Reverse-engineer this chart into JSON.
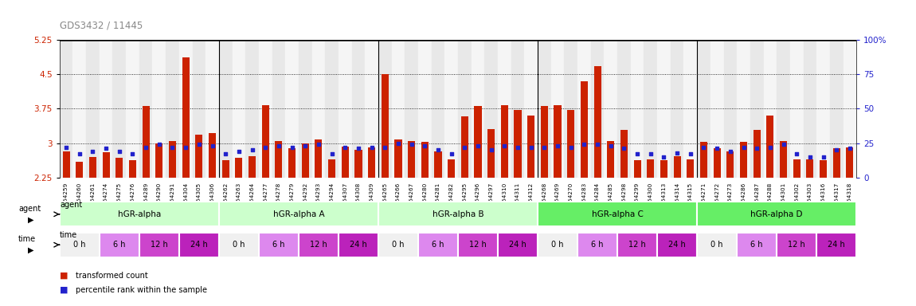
{
  "title": "GDS3432 / 11445",
  "title_color": "#888888",
  "ylim_left": [
    2.25,
    5.25
  ],
  "yticks_left": [
    2.25,
    3.0,
    3.75,
    4.5,
    5.25
  ],
  "ytick_labels_left": [
    "2.25",
    "3",
    "3.75",
    "4.5",
    "5.25"
  ],
  "yticks_right": [
    0,
    25,
    50,
    75,
    100
  ],
  "ytick_labels_right": [
    "0",
    "25",
    "50",
    "75",
    "100%"
  ],
  "bar_color": "#cc2200",
  "dot_color": "#2222cc",
  "samples": [
    "GSM154259",
    "GSM154260",
    "GSM154261",
    "GSM154274",
    "GSM154275",
    "GSM154276",
    "GSM154289",
    "GSM154290",
    "GSM154291",
    "GSM154304",
    "GSM154305",
    "GSM154306",
    "GSM154262",
    "GSM154263",
    "GSM154264",
    "GSM154277",
    "GSM154278",
    "GSM154279",
    "GSM154292",
    "GSM154293",
    "GSM154294",
    "GSM154307",
    "GSM154308",
    "GSM154309",
    "GSM154265",
    "GSM154266",
    "GSM154267",
    "GSM154280",
    "GSM154281",
    "GSM154282",
    "GSM154295",
    "GSM154296",
    "GSM154297",
    "GSM154310",
    "GSM154311",
    "GSM154312",
    "GSM154268",
    "GSM154269",
    "GSM154270",
    "GSM154283",
    "GSM154284",
    "GSM154285",
    "GSM154298",
    "GSM154299",
    "GSM154300",
    "GSM154313",
    "GSM154314",
    "GSM154315",
    "GSM154271",
    "GSM154272",
    "GSM154273",
    "GSM154286",
    "GSM154287",
    "GSM154288",
    "GSM154301",
    "GSM154302",
    "GSM154303",
    "GSM154316",
    "GSM154317",
    "GSM154318"
  ],
  "red_values": [
    2.82,
    2.6,
    2.7,
    2.8,
    2.68,
    2.62,
    3.8,
    3.0,
    3.05,
    4.87,
    3.18,
    3.22,
    2.62,
    2.68,
    2.72,
    3.82,
    3.05,
    2.88,
    3.0,
    3.08,
    2.65,
    2.93,
    2.85,
    2.9,
    4.5,
    3.08,
    3.05,
    3.02,
    2.82,
    2.65,
    3.58,
    3.8,
    3.3,
    3.82,
    3.72,
    3.6,
    3.8,
    3.82,
    3.72,
    4.35,
    4.68,
    3.05,
    3.28,
    2.63,
    2.65,
    2.63,
    2.72,
    2.65,
    3.03,
    2.88,
    2.82,
    3.02,
    3.28,
    3.6,
    3.05,
    2.65,
    2.65,
    2.63,
    2.88,
    2.9
  ],
  "blue_values_pct": [
    22,
    17,
    19,
    21,
    19,
    17,
    22,
    24,
    22,
    22,
    24,
    23,
    17,
    19,
    20,
    22,
    23,
    22,
    23,
    24,
    17,
    22,
    21,
    22,
    22,
    25,
    24,
    23,
    20,
    17,
    22,
    23,
    20,
    23,
    22,
    22,
    22,
    23,
    22,
    24,
    24,
    23,
    21,
    17,
    17,
    15,
    18,
    17,
    22,
    21,
    19,
    22,
    21,
    22,
    24,
    17,
    15,
    15,
    20,
    21
  ],
  "groups": [
    {
      "label": "hGR-alpha",
      "start": 0,
      "end": 12,
      "color": "#ccffcc"
    },
    {
      "label": "hGR-alpha A",
      "start": 12,
      "end": 24,
      "color": "#ccffcc"
    },
    {
      "label": "hGR-alpha B",
      "start": 24,
      "end": 36,
      "color": "#ccffcc"
    },
    {
      "label": "hGR-alpha C",
      "start": 36,
      "end": 48,
      "color": "#66ee66"
    },
    {
      "label": "hGR-alpha D",
      "start": 48,
      "end": 60,
      "color": "#66ee66"
    }
  ],
  "time_colors": [
    "#f0f0f0",
    "#dd88ee",
    "#cc44cc",
    "#bb22bb"
  ],
  "time_labels": [
    "0 h",
    "6 h",
    "12 h",
    "24 h"
  ],
  "bar_width": 0.55,
  "dot_size": 8,
  "label_color": "#cc2200",
  "right_label_color": "#2222cc"
}
